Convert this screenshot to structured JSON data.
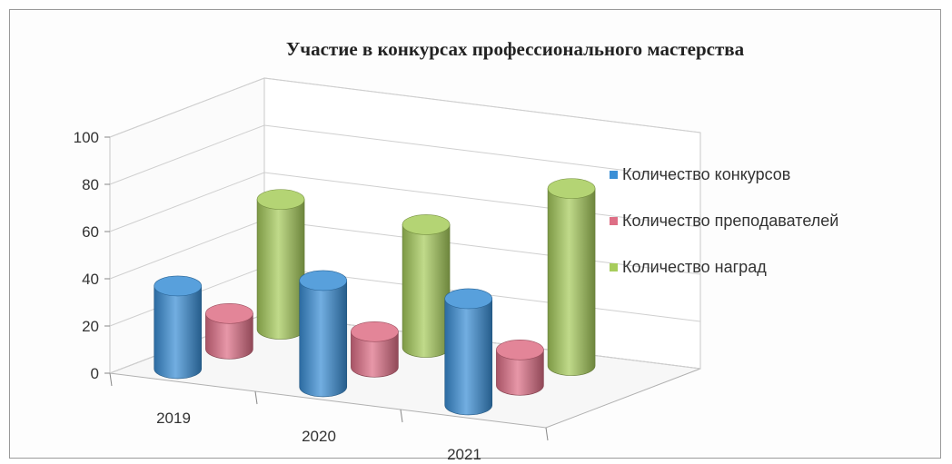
{
  "chart_data": {
    "type": "bar",
    "title": "Участие в конкурсах профессионального мастерства",
    "xlabel": "",
    "ylabel": "",
    "ylim": [
      0,
      100
    ],
    "yticks": [
      "0",
      "20",
      "40",
      "60",
      "80",
      "100"
    ],
    "categories": [
      "2019",
      "2020",
      "2021"
    ],
    "series": [
      {
        "name": "Количество конкурсов",
        "values": [
          35,
          45,
          45
        ],
        "color": "#3b8fd6"
      },
      {
        "name": "Количество преподавателей",
        "values": [
          15,
          15,
          15
        ],
        "color": "#de6f86"
      },
      {
        "name": "Количество наград",
        "values": [
          55,
          52,
          75
        ],
        "color": "#a7cc5c"
      }
    ],
    "grid": true,
    "legend_position": "right",
    "style": "3d-cylinder"
  }
}
